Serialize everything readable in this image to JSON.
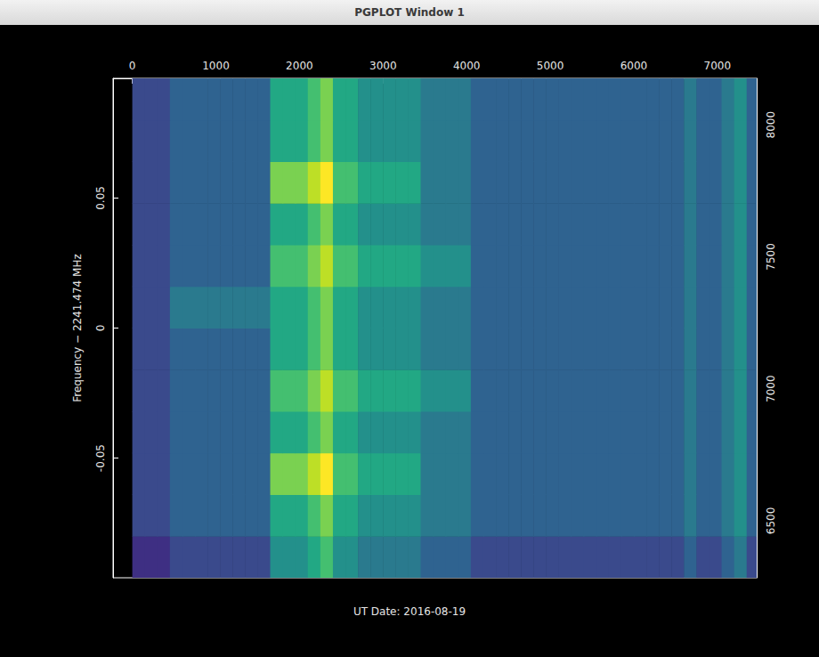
{
  "window": {
    "title": "PGPLOT Window 1"
  },
  "chart_data": {
    "type": "heatmap",
    "ylabel": "Frequency − 2241.474 MHz",
    "xlabel": "UT Date: 2016-08-19",
    "xlim": [
      -230,
      7470
    ],
    "xticks": [
      0,
      1000,
      2000,
      3000,
      4000,
      5000,
      6000,
      7000
    ],
    "ylim": [
      -0.096,
      0.096
    ],
    "yticks": [
      -0.05,
      0,
      0.05
    ],
    "y2lim": [
      6284,
      8176
    ],
    "y2ticks": [
      6500,
      7000,
      7500,
      8000
    ],
    "grid": false,
    "color_range": [
      0,
      10
    ],
    "x_bins": [
      0,
      150,
      300,
      450,
      600,
      750,
      900,
      1050,
      1200,
      1350,
      1500,
      1650,
      1800,
      1950,
      2100,
      2250,
      2400,
      2550,
      2700,
      2850,
      3000,
      3150,
      3300,
      3450,
      3600,
      3750,
      3900,
      4050,
      4200,
      4350,
      4500,
      4650,
      4800,
      4950,
      5100,
      5250,
      5400,
      5550,
      5700,
      5850,
      6000,
      6150,
      6300,
      6450,
      6600,
      6750,
      6900,
      7050,
      7200,
      7350,
      7500
    ],
    "y_bins": [
      -0.096,
      -0.08,
      -0.064,
      -0.048,
      -0.032,
      -0.016,
      0,
      0.016,
      0.032,
      0.048,
      0.064,
      0.08,
      0.096
    ],
    "cells": [
      [
        1,
        1,
        1,
        2,
        2,
        2,
        2,
        2,
        2,
        2,
        2,
        5,
        5,
        5,
        6,
        7,
        5,
        5,
        4,
        4,
        4,
        4,
        4,
        3,
        3,
        3,
        3,
        2,
        2,
        2,
        2,
        2,
        2,
        2,
        2,
        2,
        2,
        2,
        2,
        2,
        2,
        2,
        2,
        2,
        3,
        2,
        2,
        3,
        4,
        2
      ],
      [
        2,
        2,
        2,
        3,
        3,
        3,
        3,
        3,
        3,
        3,
        3,
        6,
        6,
        6,
        7,
        8,
        6,
        6,
        5,
        5,
        5,
        5,
        5,
        4,
        4,
        4,
        4,
        3,
        3,
        3,
        3,
        3,
        3,
        3,
        3,
        3,
        3,
        3,
        3,
        3,
        3,
        3,
        3,
        3,
        4,
        3,
        3,
        4,
        5,
        3
      ],
      [
        2,
        2,
        2,
        3,
        3,
        3,
        3,
        3,
        3,
        3,
        3,
        8,
        8,
        8,
        9,
        10,
        7,
        7,
        6,
        6,
        6,
        6,
        6,
        4,
        4,
        4,
        4,
        3,
        3,
        3,
        3,
        3,
        3,
        3,
        3,
        3,
        3,
        3,
        3,
        3,
        3,
        3,
        3,
        3,
        4,
        3,
        3,
        4,
        5,
        3
      ],
      [
        2,
        2,
        2,
        3,
        3,
        3,
        3,
        3,
        3,
        3,
        3,
        6,
        6,
        6,
        7,
        8,
        6,
        6,
        5,
        5,
        5,
        5,
        5,
        4,
        4,
        4,
        4,
        3,
        3,
        3,
        3,
        3,
        3,
        3,
        3,
        3,
        3,
        3,
        3,
        3,
        3,
        3,
        3,
        3,
        4,
        3,
        3,
        4,
        5,
        3
      ],
      [
        2,
        2,
        2,
        3,
        3,
        3,
        3,
        3,
        3,
        3,
        3,
        7,
        7,
        7,
        8,
        9,
        7,
        7,
        6,
        6,
        6,
        6,
        6,
        5,
        5,
        5,
        5,
        3,
        3,
        3,
        3,
        3,
        3,
        3,
        3,
        3,
        3,
        3,
        3,
        3,
        3,
        3,
        3,
        3,
        4,
        3,
        3,
        4,
        5,
        3
      ],
      [
        2,
        2,
        2,
        3,
        3,
        3,
        3,
        3,
        3,
        3,
        3,
        6,
        6,
        6,
        7,
        8,
        6,
        6,
        5,
        5,
        5,
        5,
        5,
        4,
        4,
        4,
        4,
        3,
        3,
        3,
        3,
        3,
        3,
        3,
        3,
        3,
        3,
        3,
        3,
        3,
        3,
        3,
        3,
        3,
        4,
        3,
        3,
        4,
        5,
        3
      ],
      [
        2,
        2,
        2,
        4,
        4,
        4,
        4,
        4,
        4,
        4,
        4,
        6,
        6,
        6,
        7,
        8,
        6,
        6,
        5,
        5,
        5,
        5,
        5,
        4,
        4,
        4,
        4,
        3,
        3,
        3,
        3,
        3,
        3,
        3,
        3,
        3,
        3,
        3,
        3,
        3,
        3,
        3,
        3,
        3,
        4,
        3,
        3,
        4,
        5,
        3
      ],
      [
        2,
        2,
        2,
        3,
        3,
        3,
        3,
        3,
        3,
        3,
        3,
        7,
        7,
        7,
        8,
        9,
        7,
        7,
        6,
        6,
        6,
        6,
        6,
        5,
        5,
        5,
        5,
        3,
        3,
        3,
        3,
        3,
        3,
        3,
        3,
        3,
        3,
        3,
        3,
        3,
        3,
        3,
        3,
        3,
        4,
        3,
        3,
        4,
        5,
        3
      ],
      [
        2,
        2,
        2,
        3,
        3,
        3,
        3,
        3,
        3,
        3,
        3,
        6,
        6,
        6,
        7,
        8,
        6,
        6,
        5,
        5,
        5,
        5,
        5,
        4,
        4,
        4,
        4,
        3,
        3,
        3,
        3,
        3,
        3,
        3,
        3,
        3,
        3,
        3,
        3,
        3,
        3,
        3,
        3,
        3,
        4,
        3,
        3,
        4,
        5,
        3
      ],
      [
        2,
        2,
        2,
        3,
        3,
        3,
        3,
        3,
        3,
        3,
        3,
        8,
        8,
        8,
        9,
        10,
        7,
        7,
        6,
        6,
        6,
        6,
        6,
        4,
        4,
        4,
        4,
        3,
        3,
        3,
        3,
        3,
        3,
        3,
        3,
        3,
        3,
        3,
        3,
        3,
        3,
        3,
        3,
        3,
        4,
        3,
        3,
        4,
        5,
        3
      ],
      [
        2,
        2,
        2,
        3,
        3,
        3,
        3,
        3,
        3,
        3,
        3,
        6,
        6,
        6,
        7,
        8,
        6,
        6,
        5,
        5,
        5,
        5,
        5,
        4,
        4,
        4,
        4,
        3,
        3,
        3,
        3,
        3,
        3,
        3,
        3,
        3,
        3,
        3,
        3,
        3,
        3,
        3,
        3,
        3,
        4,
        3,
        3,
        4,
        5,
        3
      ],
      [
        2,
        2,
        2,
        3,
        3,
        3,
        3,
        3,
        3,
        3,
        3,
        6,
        6,
        6,
        7,
        8,
        6,
        6,
        5,
        5,
        5,
        5,
        5,
        4,
        4,
        4,
        4,
        3,
        3,
        3,
        3,
        3,
        3,
        3,
        3,
        3,
        3,
        3,
        3,
        3,
        3,
        3,
        3,
        3,
        4,
        3,
        3,
        4,
        5,
        3
      ]
    ]
  }
}
